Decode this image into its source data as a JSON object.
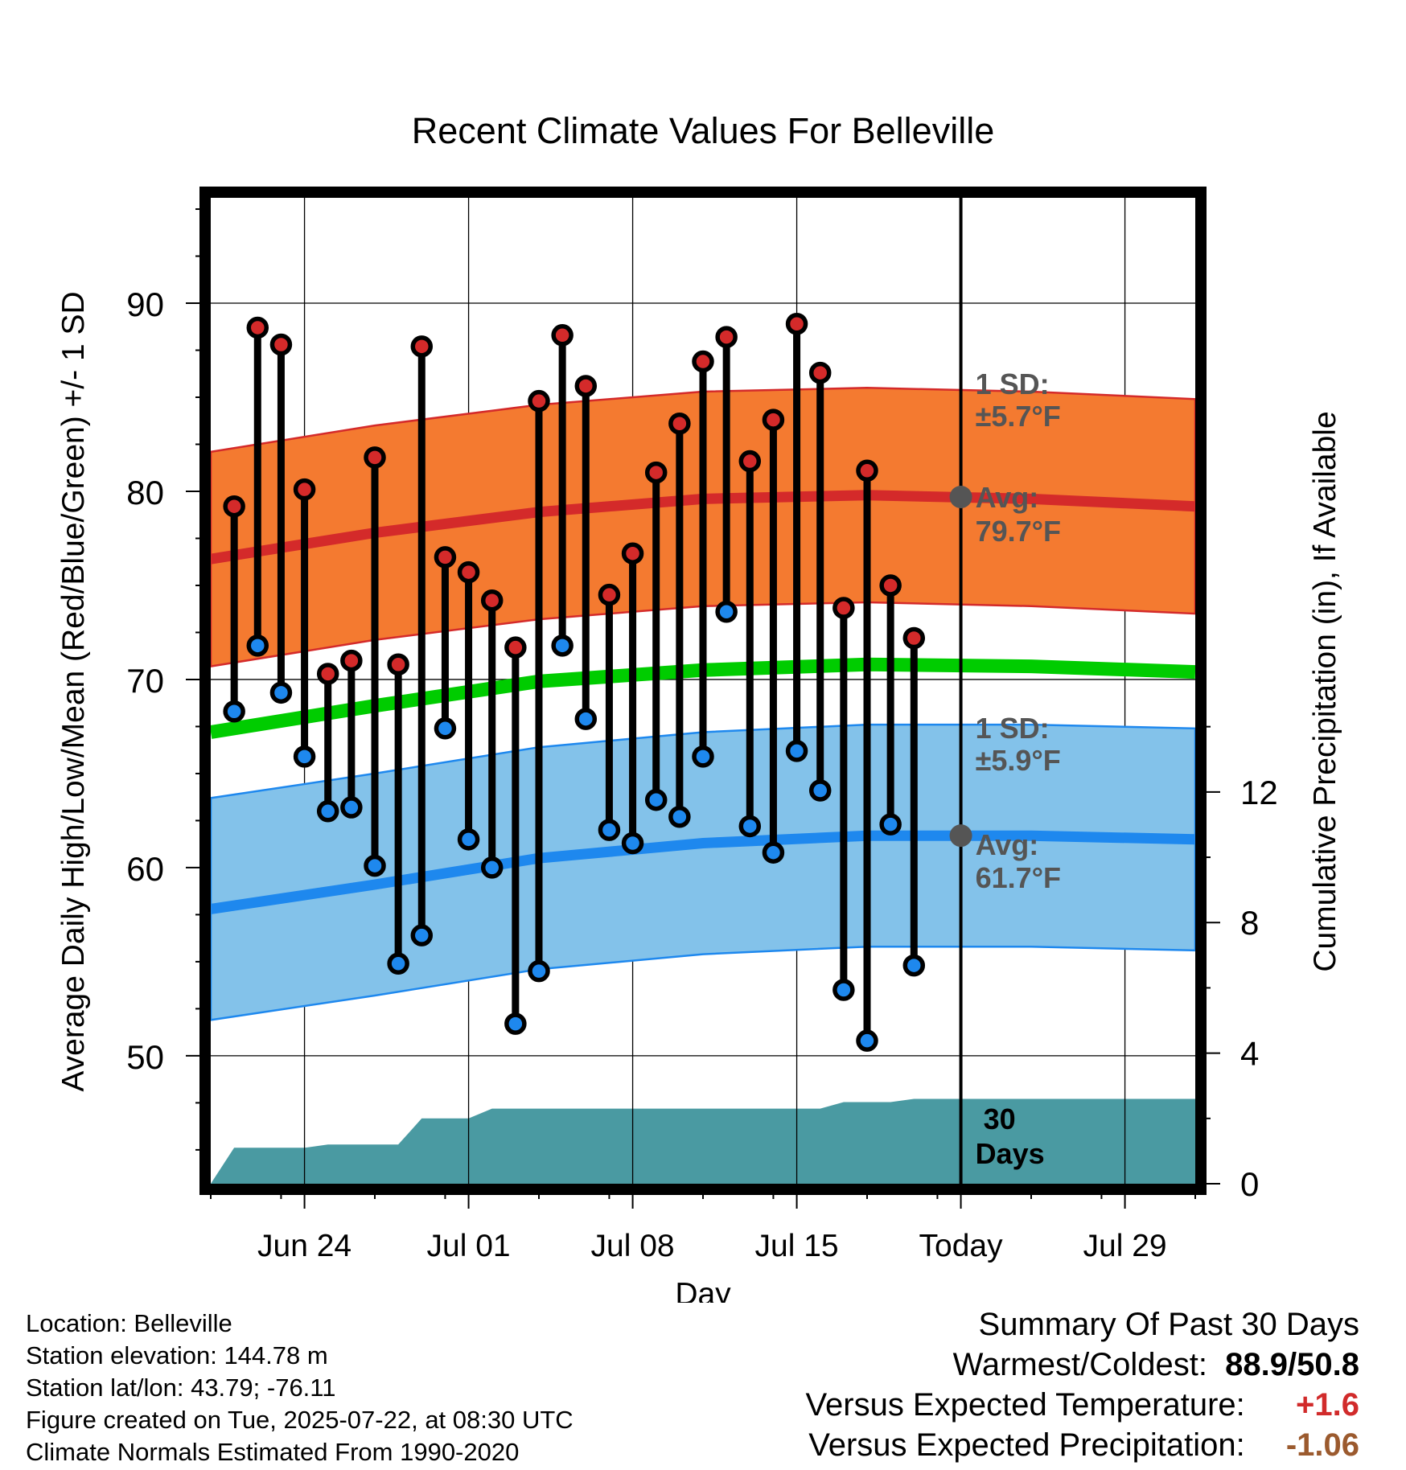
{
  "chart_data": {
    "type": "line",
    "title": "Recent Climate Values For Belleville",
    "xlabel": "Day",
    "ylabel_left": "Average Daily High/Low/Mean (Red/Blue/Green) +/- 1 SD",
    "ylabel_right": "Cumulative Precipitation (in), If Available",
    "ylim_left": [
      43.2,
      95.6
    ],
    "ylim_right": [
      0,
      30.2
    ],
    "x_range": [
      "2025-06-20",
      "2025-08-01"
    ],
    "x_ticks": [
      {
        "date": "2025-06-24",
        "label": "Jun 24"
      },
      {
        "date": "2025-07-01",
        "label": "Jul 01"
      },
      {
        "date": "2025-07-08",
        "label": "Jul 08"
      },
      {
        "date": "2025-07-15",
        "label": "Jul 15"
      },
      {
        "date": "2025-07-22",
        "label": "Today"
      },
      {
        "date": "2025-07-29",
        "label": "Jul 29"
      }
    ],
    "y_ticks_left": [
      50,
      60,
      70,
      80,
      90
    ],
    "y_ticks_right": [
      0,
      4,
      8,
      12
    ],
    "today": "2025-07-22",
    "grid": true,
    "daily_observations": [
      {
        "date": "2025-06-21",
        "high": 79.2,
        "low": 68.3
      },
      {
        "date": "2025-06-22",
        "high": 88.7,
        "low": 71.8
      },
      {
        "date": "2025-06-23",
        "high": 87.8,
        "low": 69.3
      },
      {
        "date": "2025-06-24",
        "high": 80.1,
        "low": 65.9
      },
      {
        "date": "2025-06-25",
        "high": 70.3,
        "low": 63.0
      },
      {
        "date": "2025-06-26",
        "high": 71.0,
        "low": 63.2
      },
      {
        "date": "2025-06-27",
        "high": 81.8,
        "low": 60.1
      },
      {
        "date": "2025-06-28",
        "high": 70.8,
        "low": 54.9
      },
      {
        "date": "2025-06-29",
        "high": 87.7,
        "low": 56.4
      },
      {
        "date": "2025-06-30",
        "high": 76.5,
        "low": 67.4
      },
      {
        "date": "2025-07-01",
        "high": 75.7,
        "low": 61.5
      },
      {
        "date": "2025-07-02",
        "high": 74.2,
        "low": 60.0
      },
      {
        "date": "2025-07-03",
        "high": 71.7,
        "low": 51.7
      },
      {
        "date": "2025-07-04",
        "high": 84.8,
        "low": 54.5
      },
      {
        "date": "2025-07-05",
        "high": 88.3,
        "low": 71.8
      },
      {
        "date": "2025-07-06",
        "high": 85.6,
        "low": 67.9
      },
      {
        "date": "2025-07-07",
        "high": 74.5,
        "low": 62.0
      },
      {
        "date": "2025-07-08",
        "high": 76.7,
        "low": 61.3
      },
      {
        "date": "2025-07-09",
        "high": 81.0,
        "low": 63.6
      },
      {
        "date": "2025-07-10",
        "high": 83.6,
        "low": 62.7
      },
      {
        "date": "2025-07-11",
        "high": 86.9,
        "low": 65.9
      },
      {
        "date": "2025-07-12",
        "high": 88.2,
        "low": 73.6
      },
      {
        "date": "2025-07-13",
        "high": 81.6,
        "low": 62.2
      },
      {
        "date": "2025-07-14",
        "high": 83.8,
        "low": 60.8
      },
      {
        "date": "2025-07-15",
        "high": 88.9,
        "low": 66.2
      },
      {
        "date": "2025-07-16",
        "high": 86.3,
        "low": 64.1
      },
      {
        "date": "2025-07-17",
        "high": 73.8,
        "low": 53.5
      },
      {
        "date": "2025-07-18",
        "high": 81.1,
        "low": 50.8
      },
      {
        "date": "2025-07-19",
        "high": 75.0,
        "low": 62.3
      },
      {
        "date": "2025-07-20",
        "high": 72.2,
        "low": 54.8
      }
    ],
    "normal_high": [
      {
        "date": "2025-06-20",
        "avg": 76.4
      },
      {
        "date": "2025-06-27",
        "avg": 77.8
      },
      {
        "date": "2025-07-04",
        "avg": 78.9
      },
      {
        "date": "2025-07-11",
        "avg": 79.6
      },
      {
        "date": "2025-07-18",
        "avg": 79.8
      },
      {
        "date": "2025-07-25",
        "avg": 79.6
      },
      {
        "date": "2025-08-01",
        "avg": 79.2
      }
    ],
    "normal_low": [
      {
        "date": "2025-06-20",
        "avg": 57.8
      },
      {
        "date": "2025-06-27",
        "avg": 59.1
      },
      {
        "date": "2025-07-04",
        "avg": 60.5
      },
      {
        "date": "2025-07-11",
        "avg": 61.3
      },
      {
        "date": "2025-07-18",
        "avg": 61.7
      },
      {
        "date": "2025-07-25",
        "avg": 61.7
      },
      {
        "date": "2025-08-01",
        "avg": 61.5
      }
    ],
    "normal_mean": [
      {
        "date": "2025-06-20",
        "avg": 67.2
      },
      {
        "date": "2025-06-27",
        "avg": 68.6
      },
      {
        "date": "2025-07-04",
        "avg": 69.9
      },
      {
        "date": "2025-07-11",
        "avg": 70.5
      },
      {
        "date": "2025-07-18",
        "avg": 70.8
      },
      {
        "date": "2025-07-25",
        "avg": 70.7
      },
      {
        "date": "2025-08-01",
        "avg": 70.4
      }
    ],
    "high_sd": 5.7,
    "low_sd": 5.9,
    "today_high_avg": 79.7,
    "today_low_avg": 61.7,
    "cumulative_precip": [
      {
        "date": "2025-06-20",
        "in": 0.0
      },
      {
        "date": "2025-06-21",
        "in": 1.1
      },
      {
        "date": "2025-06-24",
        "in": 1.1
      },
      {
        "date": "2025-06-25",
        "in": 1.2
      },
      {
        "date": "2025-06-28",
        "in": 1.2
      },
      {
        "date": "2025-06-29",
        "in": 2.0
      },
      {
        "date": "2025-07-01",
        "in": 2.0
      },
      {
        "date": "2025-07-02",
        "in": 2.3
      },
      {
        "date": "2025-07-13",
        "in": 2.3
      },
      {
        "date": "2025-07-16",
        "in": 2.3
      },
      {
        "date": "2025-07-17",
        "in": 2.5
      },
      {
        "date": "2025-07-19",
        "in": 2.5
      },
      {
        "date": "2025-07-20",
        "in": 2.6
      },
      {
        "date": "2025-08-01",
        "in": 2.6
      }
    ],
    "annotations": {
      "high_sd": "1 SD:",
      "high_sd_value": "±5.7°F",
      "high_avg": "Avg:",
      "high_avg_value": "79.7°F",
      "low_sd": "1 SD:",
      "low_sd_value": "±5.9°F",
      "low_avg": "Avg:",
      "low_avg_value": "61.7°F",
      "precip_days_line1": "30",
      "precip_days_line2": "Days"
    },
    "colors": {
      "high_band": "#f47a30",
      "high_line": "#d42a2a",
      "low_band": "#83c2ea",
      "low_line": "#1e88ee",
      "mean_line": "#00cc00",
      "precip": "#4a9aa2",
      "high_marker": "#d42a2a",
      "low_marker": "#1e88ee",
      "today_marker": "#555555"
    }
  },
  "info": {
    "location": "Location: Belleville",
    "elevation": "Station elevation: 144.78 m",
    "latlon": "Station lat/lon: 43.79; -76.11",
    "created": "Figure created on Tue, 2025-07-22, at 08:30 UTC",
    "normals": "Climate Normals Estimated From 1990-2020"
  },
  "summary": {
    "heading": "Summary Of Past 30 Days",
    "warm_cold_label": "Warmest/Coldest:",
    "warm_cold_value": "88.9/50.8",
    "temp_label": "Versus Expected Temperature:",
    "temp_value": "+1.6",
    "precip_label": "Versus Expected Precipitation:",
    "precip_value": "-1.06"
  }
}
